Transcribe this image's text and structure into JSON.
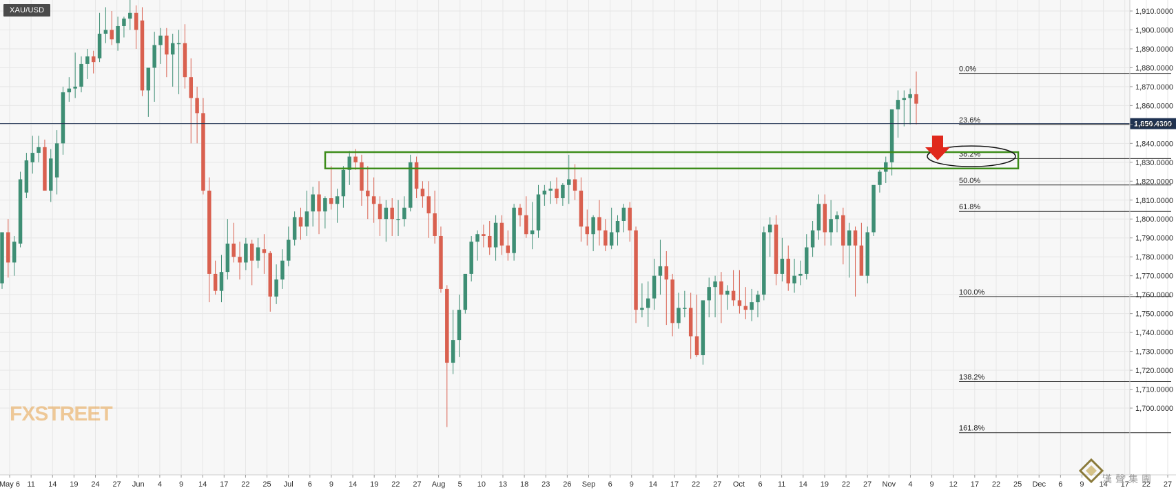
{
  "symbol": "XAU/USD",
  "logo_text": "FXSTREET",
  "watermark_text": "漢聲集團",
  "colors": {
    "up": "#3e8e74",
    "down": "#d9604f",
    "grid": "#e6e6e6",
    "zone": "#3d8c1a",
    "arrow": "#e0281c",
    "price_tag": "#1f3251"
  },
  "chart_data": {
    "type": "candlestick",
    "ylim": [
      1690,
      1915
    ],
    "y_ticks": [
      "1,910.0000",
      "1,900.0000",
      "1,890.0000",
      "1,880.0000",
      "1,870.0000",
      "1,860.0000",
      "1,850.0000",
      "1,840.0000",
      "1,830.0000",
      "1,820.0000",
      "1,810.0000",
      "1,800.0000",
      "1,790.0000",
      "1,780.0000",
      "1,770.0000",
      "1,760.0000",
      "1,750.0000",
      "1,740.0000",
      "1,730.0000",
      "1,720.0000",
      "1,710.0000",
      "1,700.0000"
    ],
    "x_ticks": [
      "May 6",
      "11",
      "14",
      "19",
      "24",
      "27",
      "Jun",
      "4",
      "9",
      "14",
      "17",
      "22",
      "25",
      "Jul",
      "6",
      "9",
      "14",
      "19",
      "22",
      "27",
      "Aug",
      "5",
      "10",
      "13",
      "18",
      "23",
      "26",
      "Sep",
      "6",
      "9",
      "14",
      "17",
      "22",
      "27",
      "Oct",
      "6",
      "11",
      "14",
      "19",
      "22",
      "27",
      "Nov",
      "4",
      "9",
      "12",
      "17",
      "22",
      "25",
      "Dec",
      "6",
      "9",
      "14",
      "17",
      "22",
      "27"
    ],
    "current_price": 1850.43,
    "current_price_label": "1,850.4300",
    "fibonacci": [
      {
        "label": "0.0%",
        "price": 1877
      },
      {
        "label": "23.6%",
        "price": 1850
      },
      {
        "label": "38.2%",
        "price": 1832
      },
      {
        "label": "50.0%",
        "price": 1818
      },
      {
        "label": "61.8%",
        "price": 1804
      },
      {
        "label": "100.0%",
        "price": 1759
      },
      {
        "label": "138.2%",
        "price": 1714
      },
      {
        "label": "161.8%",
        "price": 1687
      }
    ],
    "zone": {
      "top": 1835,
      "bottom": 1830
    },
    "candles": [
      [
        1766,
        1793,
        1763,
        1793
      ],
      [
        1793,
        1800,
        1769,
        1777
      ],
      [
        1777,
        1791,
        1770,
        1788
      ],
      [
        1787,
        1825,
        1785,
        1821
      ],
      [
        1814,
        1835,
        1811,
        1831
      ],
      [
        1830,
        1844,
        1824,
        1835
      ],
      [
        1835,
        1844,
        1830,
        1838
      ],
      [
        1838,
        1842,
        1815,
        1815
      ],
      [
        1815,
        1837,
        1809,
        1832
      ],
      [
        1822,
        1847,
        1813,
        1840
      ],
      [
        1840,
        1870,
        1834,
        1867
      ],
      [
        1867,
        1875,
        1862,
        1869
      ],
      [
        1869,
        1888,
        1864,
        1870
      ],
      [
        1870,
        1886,
        1867,
        1882
      ],
      [
        1882,
        1890,
        1874,
        1886
      ],
      [
        1886,
        1889,
        1877,
        1883
      ],
      [
        1885,
        1909,
        1883,
        1898
      ],
      [
        1898,
        1912,
        1893,
        1900
      ],
      [
        1900,
        1910,
        1892,
        1895
      ],
      [
        1893,
        1907,
        1889,
        1902
      ],
      [
        1902,
        1907,
        1896,
        1906
      ],
      [
        1906,
        1916,
        1900,
        1909
      ],
      [
        1909,
        1913,
        1890,
        1900
      ],
      [
        1905,
        1912,
        1865,
        1868
      ],
      [
        1868,
        1878,
        1854,
        1880
      ],
      [
        1880,
        1899,
        1862,
        1892
      ],
      [
        1892,
        1901,
        1882,
        1897
      ],
      [
        1897,
        1901,
        1875,
        1887
      ],
      [
        1887,
        1898,
        1870,
        1893
      ],
      [
        1893,
        1900,
        1866,
        1893
      ],
      [
        1893,
        1903,
        1869,
        1875
      ],
      [
        1875,
        1885,
        1840,
        1864
      ],
      [
        1864,
        1870,
        1840,
        1856
      ],
      [
        1856,
        1864,
        1813,
        1815
      ],
      [
        1815,
        1822,
        1756,
        1771
      ],
      [
        1771,
        1778,
        1760,
        1762
      ],
      [
        1762,
        1781,
        1756,
        1772
      ],
      [
        1772,
        1800,
        1768,
        1787
      ],
      [
        1787,
        1798,
        1777,
        1780
      ],
      [
        1780,
        1788,
        1768,
        1777
      ],
      [
        1777,
        1790,
        1773,
        1787
      ],
      [
        1787,
        1789,
        1765,
        1778
      ],
      [
        1778,
        1790,
        1774,
        1785
      ],
      [
        1784,
        1792,
        1771,
        1782
      ],
      [
        1782,
        1783,
        1751,
        1759
      ],
      [
        1759,
        1776,
        1755,
        1768
      ],
      [
        1768,
        1784,
        1763,
        1778
      ],
      [
        1778,
        1796,
        1775,
        1789
      ],
      [
        1789,
        1804,
        1786,
        1801
      ],
      [
        1801,
        1806,
        1789,
        1796
      ],
      [
        1796,
        1815,
        1791,
        1804
      ],
      [
        1804,
        1817,
        1796,
        1813
      ],
      [
        1813,
        1820,
        1792,
        1804
      ],
      [
        1804,
        1812,
        1795,
        1811
      ],
      [
        1811,
        1828,
        1805,
        1808
      ],
      [
        1808,
        1816,
        1798,
        1812
      ],
      [
        1812,
        1828,
        1806,
        1826
      ],
      [
        1826,
        1836,
        1818,
        1833
      ],
      [
        1833,
        1837,
        1826,
        1830
      ],
      [
        1830,
        1834,
        1807,
        1815
      ],
      [
        1815,
        1828,
        1800,
        1812
      ],
      [
        1812,
        1822,
        1798,
        1808
      ],
      [
        1808,
        1812,
        1791,
        1800
      ],
      [
        1800,
        1810,
        1788,
        1806
      ],
      [
        1806,
        1811,
        1791,
        1800
      ],
      [
        1800,
        1810,
        1791,
        1800
      ],
      [
        1800,
        1812,
        1796,
        1806
      ],
      [
        1806,
        1834,
        1804,
        1830
      ],
      [
        1830,
        1833,
        1811,
        1816
      ],
      [
        1816,
        1820,
        1806,
        1812
      ],
      [
        1812,
        1820,
        1790,
        1803
      ],
      [
        1803,
        1815,
        1787,
        1791
      ],
      [
        1791,
        1796,
        1761,
        1763
      ],
      [
        1763,
        1765,
        1690,
        1724
      ],
      [
        1724,
        1752,
        1718,
        1736
      ],
      [
        1736,
        1760,
        1727,
        1752
      ],
      [
        1752,
        1770,
        1750,
        1771
      ],
      [
        1771,
        1791,
        1767,
        1788
      ],
      [
        1788,
        1794,
        1778,
        1792
      ],
      [
        1792,
        1797,
        1785,
        1791
      ],
      [
        1791,
        1799,
        1781,
        1785
      ],
      [
        1785,
        1802,
        1778,
        1798
      ],
      [
        1798,
        1802,
        1781,
        1786
      ],
      [
        1786,
        1794,
        1778,
        1782
      ],
      [
        1782,
        1808,
        1778,
        1806
      ],
      [
        1806,
        1808,
        1796,
        1802
      ],
      [
        1802,
        1812,
        1790,
        1792
      ],
      [
        1792,
        1809,
        1784,
        1794
      ],
      [
        1794,
        1818,
        1790,
        1813
      ],
      [
        1813,
        1818,
        1807,
        1815
      ],
      [
        1815,
        1820,
        1808,
        1816
      ],
      [
        1816,
        1822,
        1808,
        1811
      ],
      [
        1811,
        1819,
        1807,
        1818
      ],
      [
        1818,
        1834,
        1808,
        1821
      ],
      [
        1821,
        1829,
        1810,
        1815
      ],
      [
        1815,
        1822,
        1788,
        1796
      ],
      [
        1796,
        1805,
        1786,
        1792
      ],
      [
        1792,
        1802,
        1783,
        1801
      ],
      [
        1801,
        1810,
        1786,
        1794
      ],
      [
        1794,
        1800,
        1783,
        1786
      ],
      [
        1786,
        1806,
        1784,
        1793
      ],
      [
        1793,
        1802,
        1786,
        1799
      ],
      [
        1799,
        1808,
        1793,
        1806
      ],
      [
        1806,
        1809,
        1788,
        1794
      ],
      [
        1794,
        1796,
        1745,
        1752
      ],
      [
        1752,
        1766,
        1748,
        1753
      ],
      [
        1753,
        1767,
        1743,
        1758
      ],
      [
        1758,
        1779,
        1752,
        1770
      ],
      [
        1770,
        1789,
        1760,
        1775
      ],
      [
        1775,
        1783,
        1744,
        1768
      ],
      [
        1768,
        1771,
        1738,
        1745
      ],
      [
        1745,
        1761,
        1742,
        1753
      ],
      [
        1753,
        1762,
        1748,
        1753
      ],
      [
        1753,
        1761,
        1726,
        1738
      ],
      [
        1738,
        1760,
        1727,
        1728
      ],
      [
        1728,
        1756,
        1723,
        1757
      ],
      [
        1757,
        1769,
        1748,
        1764
      ],
      [
        1764,
        1770,
        1748,
        1767
      ],
      [
        1767,
        1772,
        1745,
        1760
      ],
      [
        1760,
        1765,
        1752,
        1762
      ],
      [
        1762,
        1773,
        1754,
        1757
      ],
      [
        1757,
        1773,
        1750,
        1754
      ],
      [
        1754,
        1764,
        1747,
        1752
      ],
      [
        1752,
        1763,
        1746,
        1756
      ],
      [
        1756,
        1762,
        1748,
        1760
      ],
      [
        1760,
        1796,
        1757,
        1793
      ],
      [
        1793,
        1801,
        1780,
        1797
      ],
      [
        1797,
        1802,
        1765,
        1771
      ],
      [
        1771,
        1790,
        1767,
        1779
      ],
      [
        1779,
        1786,
        1762,
        1766
      ],
      [
        1766,
        1779,
        1761,
        1770
      ],
      [
        1770,
        1778,
        1765,
        1771
      ],
      [
        1771,
        1792,
        1768,
        1785
      ],
      [
        1785,
        1799,
        1780,
        1794
      ],
      [
        1794,
        1813,
        1789,
        1808
      ],
      [
        1808,
        1813,
        1786,
        1793
      ],
      [
        1793,
        1810,
        1786,
        1800
      ],
      [
        1800,
        1804,
        1793,
        1802
      ],
      [
        1802,
        1806,
        1776,
        1786
      ],
      [
        1786,
        1798,
        1769,
        1794
      ],
      [
        1794,
        1796,
        1759,
        1786
      ],
      [
        1786,
        1798,
        1771,
        1770
      ],
      [
        1770,
        1796,
        1766,
        1793
      ],
      [
        1793,
        1816,
        1791,
        1818
      ],
      [
        1818,
        1826,
        1814,
        1825
      ],
      [
        1825,
        1833,
        1819,
        1830
      ],
      [
        1830,
        1857,
        1823,
        1858
      ],
      [
        1858,
        1868,
        1843,
        1863
      ],
      [
        1863,
        1868,
        1849,
        1864
      ],
      [
        1864,
        1869,
        1850,
        1866
      ],
      [
        1866,
        1878,
        1850,
        1861
      ]
    ]
  }
}
